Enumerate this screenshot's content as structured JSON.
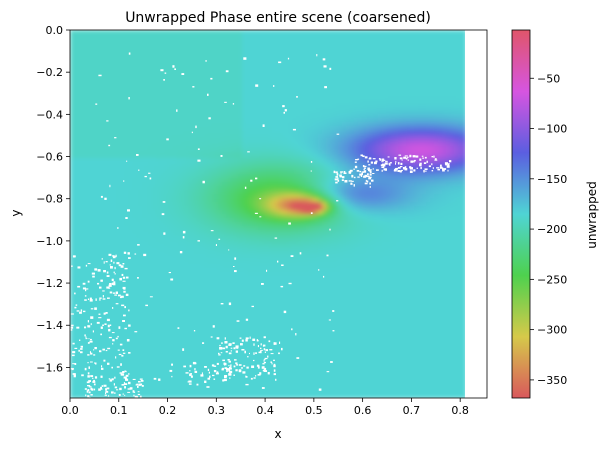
{
  "chart_data": {
    "type": "heatmap",
    "title": "Unwrapped Phase entire scene (coarsened)",
    "xlabel": "x",
    "ylabel": "y",
    "xlim": [
      0.0,
      0.855
    ],
    "ylim": [
      -1.745,
      0.0
    ],
    "data_extent": {
      "x": [
        0.0,
        0.81
      ],
      "y": [
        -1.745,
        0.0
      ]
    },
    "xticks": [
      {
        "value": 0.0,
        "label": "0.0"
      },
      {
        "value": 0.1,
        "label": "0.1"
      },
      {
        "value": 0.2,
        "label": "0.2"
      },
      {
        "value": 0.3,
        "label": "0.3"
      },
      {
        "value": 0.4,
        "label": "0.4"
      },
      {
        "value": 0.5,
        "label": "0.5"
      },
      {
        "value": 0.6,
        "label": "0.6"
      },
      {
        "value": 0.7,
        "label": "0.7"
      },
      {
        "value": 0.8,
        "label": "0.8"
      }
    ],
    "yticks": [
      {
        "value": 0.0,
        "label": "0.0"
      },
      {
        "value": -0.2,
        "label": "−0.2"
      },
      {
        "value": -0.4,
        "label": "−0.4"
      },
      {
        "value": -0.6,
        "label": "−0.6"
      },
      {
        "value": -0.8,
        "label": "−0.8"
      },
      {
        "value": -1.0,
        "label": "−1.0"
      },
      {
        "value": -1.2,
        "label": "−1.2"
      },
      {
        "value": -1.4,
        "label": "−1.4"
      },
      {
        "value": -1.6,
        "label": "−1.6"
      }
    ],
    "colorbar": {
      "label": "unwrapped",
      "range": [
        -368,
        -2
      ],
      "ticks": [
        {
          "value": -50,
          "label": "−50"
        },
        {
          "value": -100,
          "label": "−100"
        },
        {
          "value": -150,
          "label": "−150"
        },
        {
          "value": -200,
          "label": "−200"
        },
        {
          "value": -250,
          "label": "−250"
        },
        {
          "value": -300,
          "label": "−300"
        },
        {
          "value": -350,
          "label": "−350"
        }
      ],
      "colormap": [
        "#d9585c",
        "#d6c94a",
        "#4ed14e",
        "#4fd4d4",
        "#5b5ee0",
        "#d655e0",
        "#e0556a"
      ]
    },
    "background_value": -185,
    "features": [
      {
        "name": "green-lobe",
        "x": 0.43,
        "y": -0.8,
        "value": -262,
        "sx": 0.1,
        "sy": 0.11
      },
      {
        "name": "yellow-core",
        "x": 0.47,
        "y": -0.83,
        "value": -310,
        "sx": 0.045,
        "sy": 0.04
      },
      {
        "name": "red-spot",
        "x": 0.495,
        "y": -0.84,
        "value": -355,
        "sx": 0.018,
        "sy": 0.017
      },
      {
        "name": "purple-lobe",
        "x": 0.72,
        "y": -0.57,
        "value": -60,
        "sx": 0.1,
        "sy": 0.075
      },
      {
        "name": "blue-lobe",
        "x": 0.58,
        "y": -0.78,
        "value": -125,
        "sx": 0.08,
        "sy": 0.06
      }
    ]
  }
}
